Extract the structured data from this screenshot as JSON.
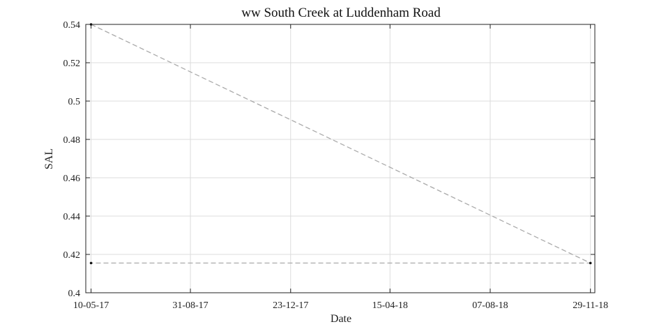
{
  "chart_data": {
    "type": "line",
    "title": "ww South Creek at Luddenham Road",
    "xlabel": "Date",
    "ylabel": "SAL",
    "xlim": [
      "2017-05-04",
      "2018-12-04"
    ],
    "ylim": [
      0.4,
      0.54
    ],
    "x_ticks": [
      {
        "date": "2017-05-10",
        "label": "10-05-17"
      },
      {
        "date": "2017-08-31",
        "label": "31-08-17"
      },
      {
        "date": "2017-12-23",
        "label": "23-12-17"
      },
      {
        "date": "2018-04-15",
        "label": "15-04-18"
      },
      {
        "date": "2018-08-07",
        "label": "07-08-18"
      },
      {
        "date": "2018-11-29",
        "label": "29-11-18"
      }
    ],
    "y_ticks": [
      0.4,
      0.42,
      0.44,
      0.46,
      0.48,
      0.5,
      0.52,
      0.54
    ],
    "y_tick_labels": [
      "0.4",
      "0.42",
      "0.44",
      "0.46",
      "0.48",
      "0.5",
      "0.52",
      "0.54"
    ],
    "grid": true,
    "series": [
      {
        "line_style": "dashed",
        "color": "#aaaaaa",
        "marker_color": "#111111",
        "points": [
          {
            "x": "2017-05-10",
            "y": 0.54
          },
          {
            "x": "2018-11-29",
            "y": 0.4155
          },
          {
            "x": "2017-05-10",
            "y": 0.4155
          }
        ]
      }
    ]
  }
}
